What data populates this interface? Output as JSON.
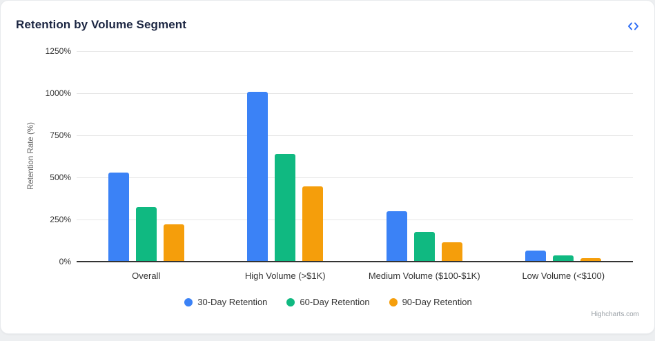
{
  "page": {
    "credits": "Highcharts.com"
  },
  "header": {
    "code_icon": "code-brackets"
  },
  "colors": {
    "accent": "#2b6cf6",
    "axis_line": "#333333",
    "gridline": "#e6e6e6"
  },
  "chart_data": {
    "type": "bar",
    "title": "Retention by Volume Segment",
    "categories": [
      "Overall",
      "High Volume (>$1K)",
      "Medium Volume ($100-$1K)",
      "Low Volume (<$100)"
    ],
    "series": [
      {
        "name": "30-Day Retention",
        "color": "#3b82f6",
        "values": [
          527,
          1010,
          299,
          64
        ]
      },
      {
        "name": "60-Day Retention",
        "color": "#10b981",
        "values": [
          324,
          640,
          175,
          35
        ]
      },
      {
        "name": "90-Day Retention",
        "color": "#f59e0b",
        "values": [
          223,
          446,
          113,
          22
        ]
      }
    ],
    "xlabel": "",
    "ylabel": "Retention Rate (%)",
    "ylim": [
      0,
      1250
    ],
    "ytick_step": 250,
    "ytick_suffix": "%",
    "grid": true,
    "legend_position": "bottom"
  }
}
